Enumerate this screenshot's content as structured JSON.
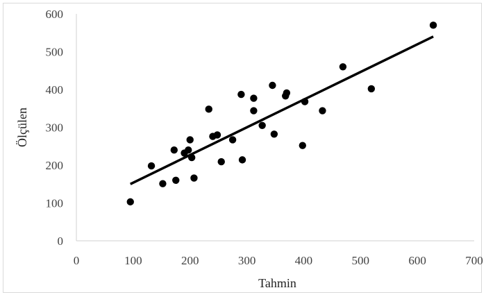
{
  "chart_data": {
    "type": "scatter",
    "xlabel": "Tahmin",
    "ylabel": "Ölçülen",
    "xlim": [
      0,
      700
    ],
    "ylim": [
      0,
      600
    ],
    "xticks": [
      0,
      100,
      200,
      300,
      400,
      500,
      600,
      700
    ],
    "yticks": [
      0,
      100,
      200,
      300,
      400,
      500,
      600
    ],
    "grid": false,
    "marker_color": "#000000",
    "points": [
      [
        95,
        103
      ],
      [
        132,
        198
      ],
      [
        152,
        151
      ],
      [
        172,
        240
      ],
      [
        175,
        160
      ],
      [
        190,
        232
      ],
      [
        197,
        240
      ],
      [
        200,
        267
      ],
      [
        203,
        220
      ],
      [
        207,
        166
      ],
      [
        233,
        348
      ],
      [
        240,
        276
      ],
      [
        248,
        280
      ],
      [
        255,
        209
      ],
      [
        275,
        267
      ],
      [
        290,
        387
      ],
      [
        292,
        214
      ],
      [
        312,
        377
      ],
      [
        312,
        344
      ],
      [
        327,
        305
      ],
      [
        345,
        411
      ],
      [
        348,
        282
      ],
      [
        368,
        383
      ],
      [
        370,
        391
      ],
      [
        398,
        252
      ],
      [
        402,
        368
      ],
      [
        433,
        344
      ],
      [
        469,
        460
      ],
      [
        519,
        402
      ],
      [
        628,
        570
      ]
    ],
    "trendline": {
      "x": [
        95,
        628
      ],
      "y": [
        150,
        540
      ],
      "color": "#000000"
    }
  }
}
